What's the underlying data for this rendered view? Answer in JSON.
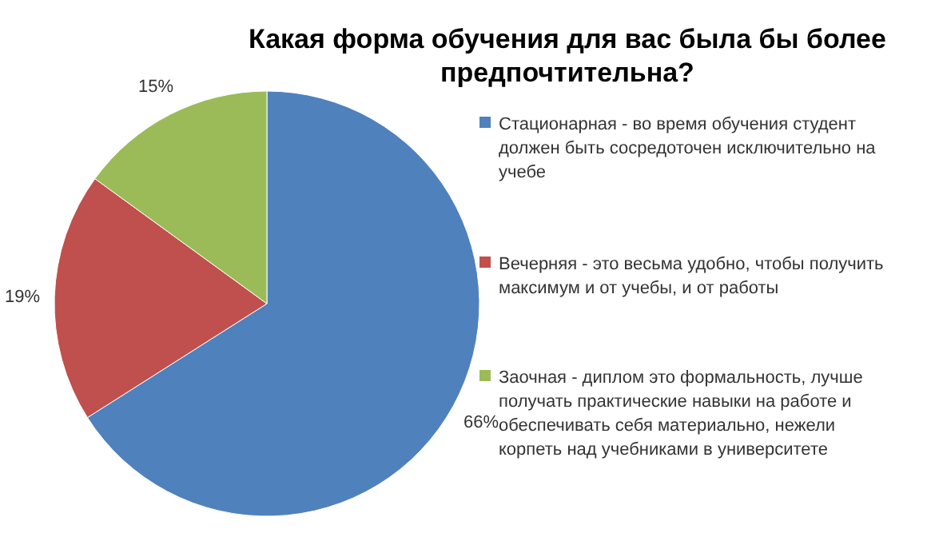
{
  "chart_data": {
    "type": "pie",
    "title": "Какая форма обучения для вас была бы более предпочтительна?",
    "categories": [
      "Стационарная - во время обучения студент должен быть сосредоточен исключительно на учебе",
      "Вечерняя - это весьма удобно, чтобы получить максимум и от учебы, и от работы",
      "Заочная - диплом это формальность, лучше получать практические навыки на работе и обеспечивать себя материально, нежели корпеть над учебниками в университете"
    ],
    "values": [
      66,
      19,
      15
    ],
    "colors": [
      "#4f81bd",
      "#c0504d",
      "#9bbb59"
    ],
    "value_labels": [
      "66%",
      "19%",
      "15%"
    ],
    "legend": "right"
  }
}
